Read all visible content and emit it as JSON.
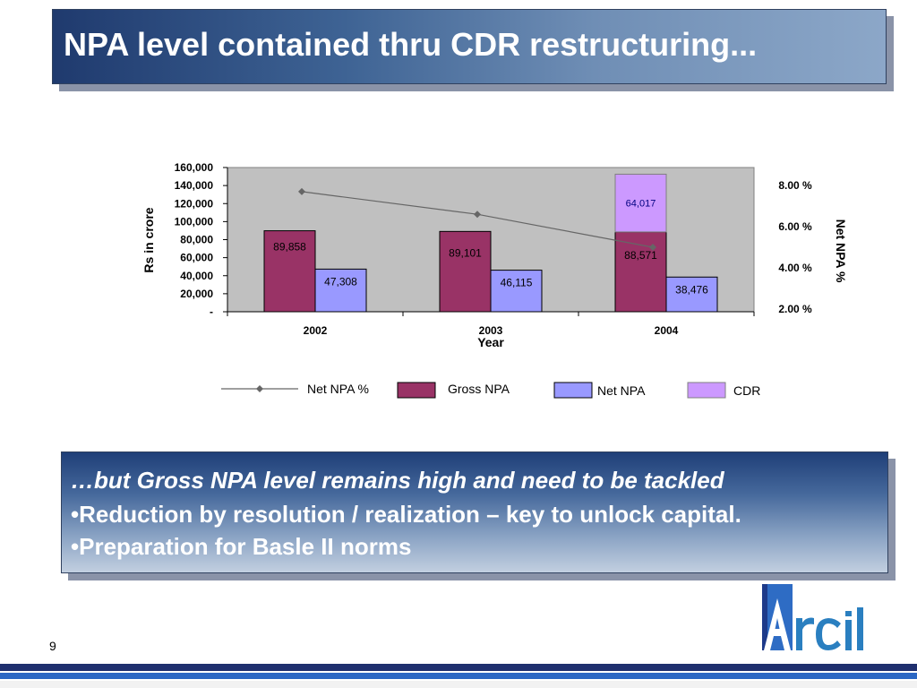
{
  "slide": {
    "title": "NPA level contained thru CDR restructuring...",
    "page_number": "9",
    "logo_text": "Arcil",
    "bullets": [
      "…but Gross NPA level remains high and need to be tackled",
      "•Reduction by resolution / realization – key to unlock capital.",
      "•Preparation for Basle II norms"
    ]
  },
  "chart_data": {
    "type": "bar",
    "categories": [
      "2002",
      "2003",
      "2004"
    ],
    "xlabel": "Year",
    "ylabel": "Rs in crore",
    "ylabel_right": "Net NPA %",
    "ylim": [
      0,
      160000
    ],
    "yticks": [
      "-",
      "20,000",
      "40,000",
      "60,000",
      "80,000",
      "100,000",
      "120,000",
      "140,000",
      "160,000"
    ],
    "yticks_right": [
      "2.00 %",
      "4.00 %",
      "6.00 %",
      "8.00 %"
    ],
    "series": [
      {
        "name": "Gross NPA",
        "kind": "bar",
        "color": "#993366",
        "values": [
          89858,
          89101,
          88571
        ],
        "labels": [
          "89,858",
          "89,101",
          "88,571"
        ]
      },
      {
        "name": "Net NPA",
        "kind": "bar",
        "color": "#9999ff",
        "values": [
          47308,
          46115,
          38476
        ],
        "labels": [
          "47,308",
          "46,115",
          "38,476"
        ]
      },
      {
        "name": "CDR",
        "kind": "stacked-bar",
        "color": "#cc99ff",
        "values": [
          null,
          null,
          64017
        ],
        "labels": [
          "",
          "",
          "64,017"
        ]
      },
      {
        "name": "Net NPA %",
        "kind": "line",
        "color": "#666666",
        "values": [
          7.7,
          6.6,
          5.0
        ]
      }
    ],
    "grid": false,
    "plot_background": "#c0c0c0",
    "legend_position": "bottom"
  }
}
